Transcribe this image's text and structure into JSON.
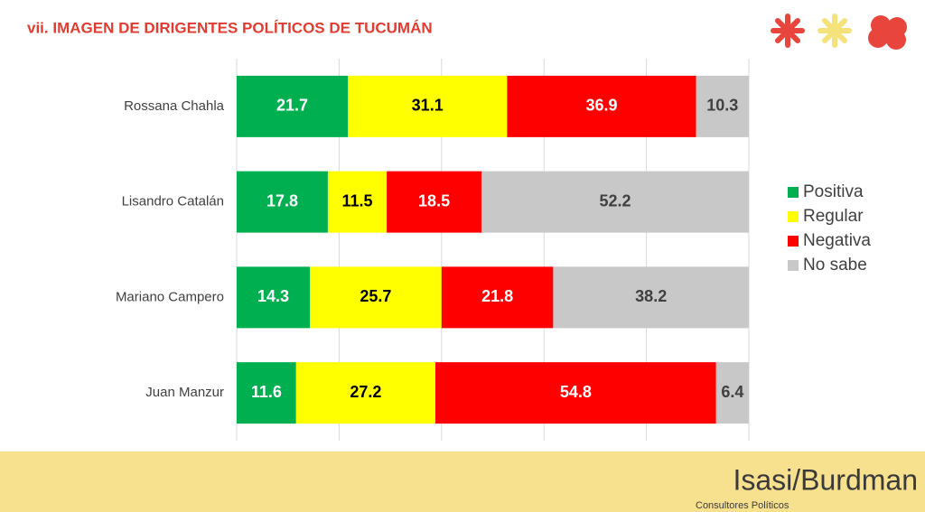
{
  "header": {
    "title": "vii. IMAGEN DE DIRIGENTES POLÍTICOS DE TUCUMÁN"
  },
  "chart_data": {
    "type": "stacked-bar-horizontal",
    "categories": [
      "Rossana Chahla",
      "Lisandro Catalán",
      "Mariano Campero",
      "Juan Manzur"
    ],
    "series": [
      {
        "name": "Positiva",
        "color": "#00b050",
        "values": [
          21.7,
          17.8,
          14.3,
          11.6
        ]
      },
      {
        "name": "Regular",
        "color": "#ffff00",
        "values": [
          31.1,
          11.5,
          25.7,
          27.2
        ]
      },
      {
        "name": "Negativa",
        "color": "#ff0000",
        "values": [
          36.9,
          18.5,
          21.8,
          54.8
        ]
      },
      {
        "name": "No sabe",
        "color": "#c8c8c8",
        "values": [
          10.3,
          52.2,
          38.2,
          6.4
        ]
      }
    ],
    "xlim": [
      0,
      100
    ],
    "xticks": [
      0,
      20,
      40,
      60,
      80,
      100
    ],
    "grid": true,
    "legend": "right"
  },
  "footer": {
    "brand": "Isasi/Burdman",
    "tagline": "Consultores Políticos"
  }
}
